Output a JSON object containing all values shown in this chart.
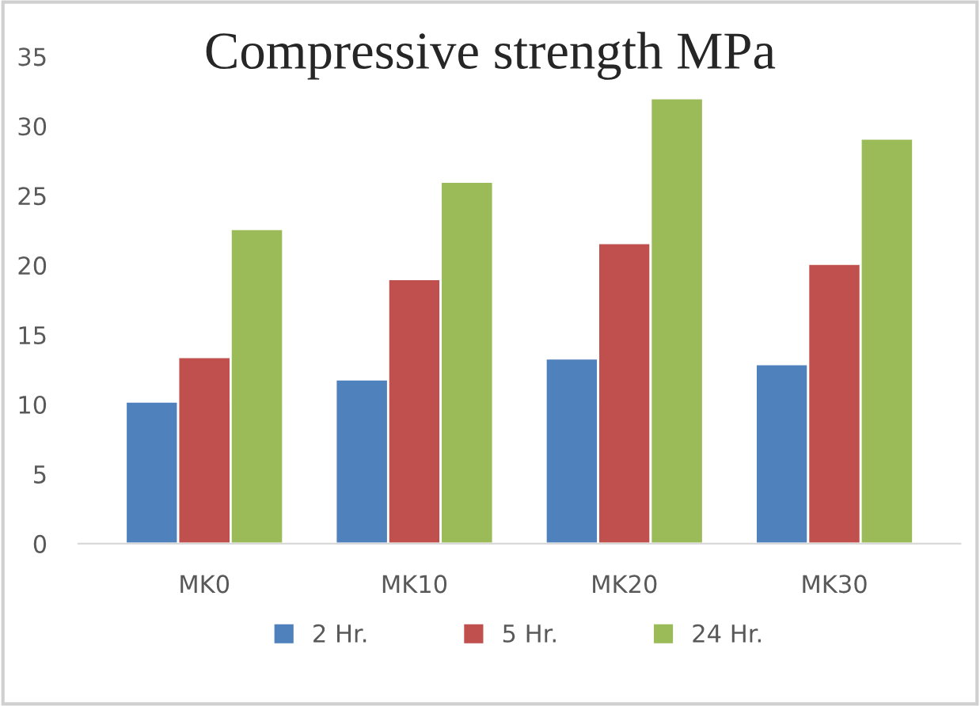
{
  "chart_data": {
    "type": "bar",
    "title": "Compressive strength MPa",
    "categories": [
      "MK0",
      "MK10",
      "MK20",
      "MK30"
    ],
    "series": [
      {
        "name": "2 Hr.",
        "color": "#4f81bd",
        "values": [
          10.2,
          11.8,
          13.3,
          12.9
        ]
      },
      {
        "name": "5 Hr.",
        "color": "#c0504d",
        "values": [
          13.4,
          19.0,
          21.6,
          20.1
        ]
      },
      {
        "name": "24 Hr.",
        "color": "#9bbb59",
        "values": [
          22.6,
          26.0,
          32.0,
          29.1
        ]
      }
    ],
    "ylim": [
      0,
      35
    ],
    "yticks": [
      0,
      5,
      10,
      15,
      20,
      25,
      30,
      35
    ],
    "grid": false,
    "legend": "bottom"
  }
}
